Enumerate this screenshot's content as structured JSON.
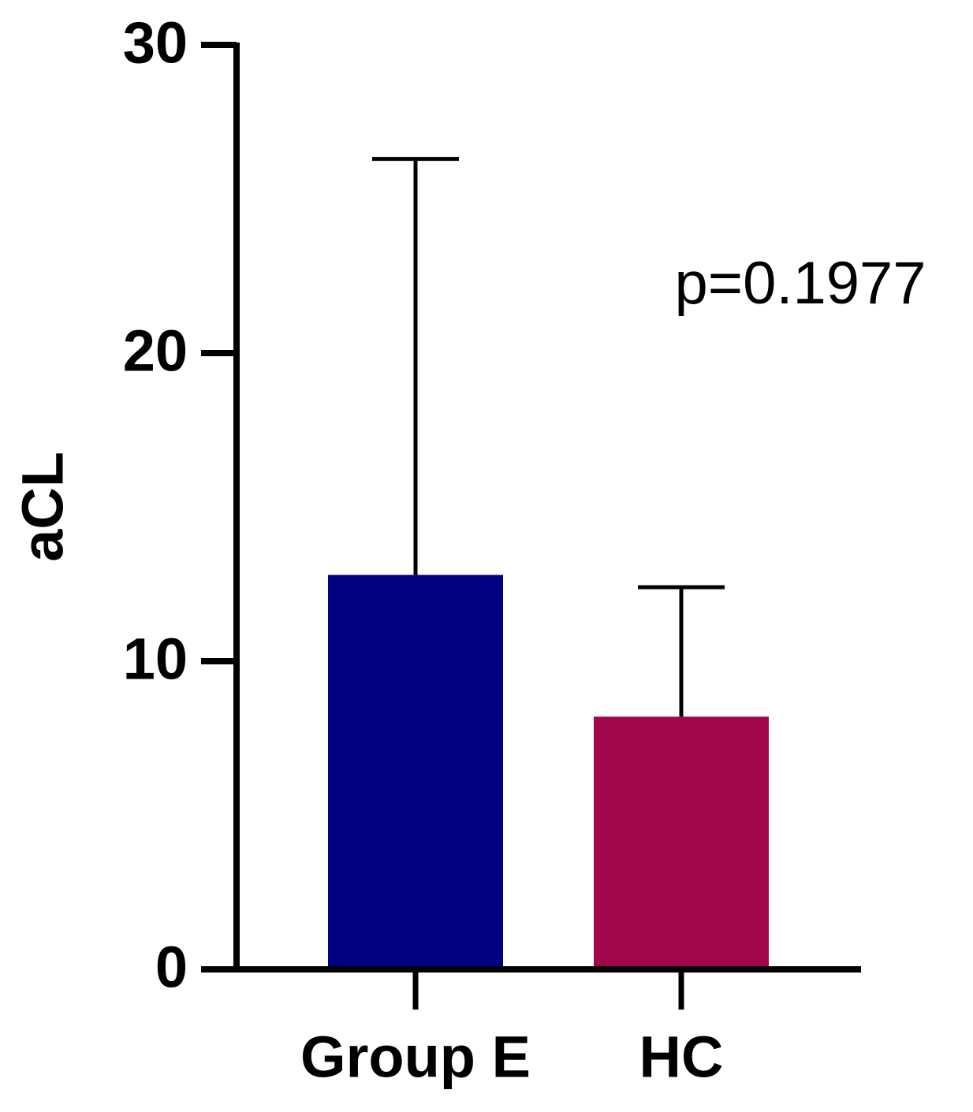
{
  "chart_data": {
    "type": "bar",
    "ylabel": "aCL",
    "annotation": "p=0.1977",
    "categories": [
      "Group E",
      "HC"
    ],
    "values": [
      12.8,
      8.2
    ],
    "errors": [
      13.5,
      4.2
    ],
    "colors": [
      "#000080",
      "#a0064a"
    ],
    "ylim": [
      0,
      30
    ],
    "yticks": [
      0,
      10,
      20,
      30
    ]
  }
}
